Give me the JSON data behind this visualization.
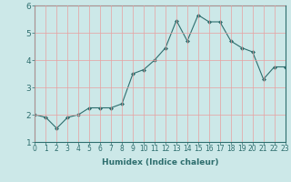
{
  "x": [
    0,
    1,
    2,
    3,
    4,
    5,
    6,
    7,
    8,
    9,
    10,
    11,
    12,
    13,
    14,
    15,
    16,
    17,
    18,
    19,
    20,
    21,
    22,
    23
  ],
  "y": [
    2.0,
    1.9,
    1.5,
    1.9,
    2.0,
    2.25,
    2.25,
    2.25,
    2.4,
    3.5,
    3.65,
    4.0,
    4.45,
    5.45,
    4.7,
    5.65,
    5.4,
    5.4,
    4.7,
    4.45,
    4.3,
    3.3,
    3.75,
    3.75
  ],
  "line_color": "#2e6e6e",
  "marker": "D",
  "marker_size": 2,
  "bg_color": "#cce8e8",
  "grid_color_v": "#e8a0a0",
  "grid_color_h": "#e8a0a0",
  "xlabel": "Humidex (Indice chaleur)",
  "xlim": [
    0,
    23
  ],
  "ylim": [
    1.0,
    6.0
  ],
  "yticks": [
    1,
    2,
    3,
    4,
    5,
    6
  ],
  "xticks": [
    0,
    1,
    2,
    3,
    4,
    5,
    6,
    7,
    8,
    9,
    10,
    11,
    12,
    13,
    14,
    15,
    16,
    17,
    18,
    19,
    20,
    21,
    22,
    23
  ],
  "xlabel_fontsize": 6.5,
  "tick_fontsize": 5.5,
  "ytick_fontsize": 6.5
}
